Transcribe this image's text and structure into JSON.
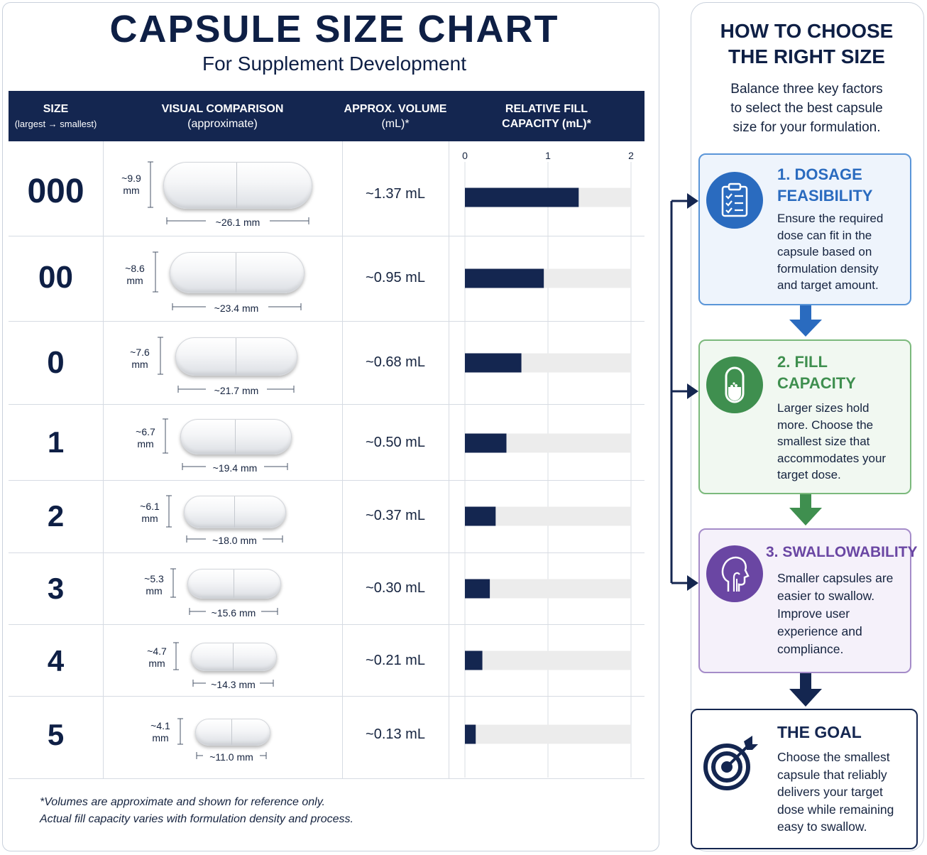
{
  "header": {
    "title": "CAPSULE SIZE CHART",
    "subtitle": "For Supplement Development"
  },
  "columns": {
    "size": "SIZE",
    "size_sub": "(largest → smallest)",
    "visual": "VISUAL COMPARISON",
    "visual_sub": "(approximate)",
    "volume_line1": "APPROX. VOLUME",
    "volume_line2": "(mL)*",
    "fill_line1": "RELATIVE FILL",
    "fill_line2": "CAPACITY (mL)*"
  },
  "rows": [
    {
      "size": "000",
      "diameter_line1": "~9.9",
      "diameter_line2": "mm",
      "length": "~26.1 mm",
      "volume_text": "~1.37 mL"
    },
    {
      "size": "00",
      "diameter_line1": "~8.6",
      "diameter_line2": "mm",
      "length": "~23.4 mm",
      "volume_text": "~0.95 mL"
    },
    {
      "size": "0",
      "diameter_line1": "~7.6",
      "diameter_line2": "mm",
      "length": "~21.7 mm",
      "volume_text": "~0.68 mL"
    },
    {
      "size": "1",
      "diameter_line1": "~6.7",
      "diameter_line2": "mm",
      "length": "~19.4 mm",
      "volume_text": "~0.50 mL"
    },
    {
      "size": "2",
      "diameter_line1": "~6.1",
      "diameter_line2": "mm",
      "length": "~18.0 mm",
      "volume_text": "~0.37 mL"
    },
    {
      "size": "3",
      "diameter_line1": "~5.3",
      "diameter_line2": "mm",
      "length": "~15.6 mm",
      "volume_text": "~0.30 mL"
    },
    {
      "size": "4",
      "diameter_line1": "~4.7",
      "diameter_line2": "mm",
      "length": "~14.3 mm",
      "volume_text": "~0.21 mL"
    },
    {
      "size": "5",
      "diameter_line1": "~4.1",
      "diameter_line2": "mm",
      "length": "~11.0 mm",
      "volume_text": "~0.13 mL"
    }
  ],
  "chart_data": {
    "type": "bar",
    "orientation": "horizontal",
    "categories": [
      "000",
      "00",
      "0",
      "1",
      "2",
      "3",
      "4",
      "5"
    ],
    "values": [
      1.37,
      0.95,
      0.68,
      0.5,
      0.37,
      0.3,
      0.21,
      0.13
    ],
    "xlim": [
      0,
      2
    ],
    "x_ticks": [
      "0",
      "1",
      "2"
    ],
    "grid": true,
    "bar_color": "#142650",
    "track_color": "#ececec"
  },
  "footnote": {
    "line1": "*Volumes are approximate and shown for reference only.",
    "line2": "Actual fill capacity varies with formulation density and process."
  },
  "sidebar": {
    "title_line1": "HOW TO CHOOSE",
    "title_line2": "THE RIGHT SIZE",
    "intro_line1": "Balance three key factors",
    "intro_line2": "to select the best capsule",
    "intro_line3": "size for your formulation.",
    "steps": [
      {
        "title_line1": "1. DOSAGE",
        "title_line2": "FEASIBILITY",
        "icon": "clipboard-checklist-icon",
        "color": "#2a6bbf",
        "lines": [
          "Ensure the required",
          "dose can fit in the",
          "capsule based on",
          "formulation density",
          "and target amount."
        ]
      },
      {
        "title_line1": "2. FILL",
        "title_line2": "CAPACITY",
        "icon": "capsule-icon",
        "color": "#3f8f4f",
        "lines": [
          "Larger sizes hold",
          "more. Choose the",
          "smallest size that",
          "accommodates your",
          "target dose."
        ]
      },
      {
        "title_line1": "3. SWALLOWABILITY",
        "icon": "throat-profile-icon",
        "color": "#6a46a3",
        "lines": [
          "Smaller capsules are",
          "easier to swallow.",
          "Improve user",
          "experience and",
          "compliance."
        ]
      }
    ],
    "goal": {
      "title": "THE GOAL",
      "icon": "target-arrow-icon",
      "color": "#142650",
      "lines": [
        "Choose the smallest",
        "capsule that reliably",
        "delivers your target",
        "dose while remaining",
        "easy to swallow."
      ]
    }
  }
}
